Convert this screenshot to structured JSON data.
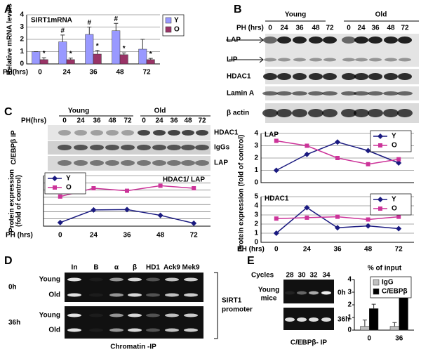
{
  "panel_labels": [
    "A",
    "B",
    "C",
    "D",
    "E"
  ],
  "chart_data": [
    {
      "type": "bar",
      "title": "SIRT1mRNA",
      "y_label": "Relative mRNA levels",
      "x_label": "PH(hrs)",
      "categories": [
        "0",
        "24",
        "36",
        "48",
        "72"
      ],
      "series": [
        {
          "name": "Y",
          "color": "#9999ff",
          "values": [
            1,
            1.8,
            2.4,
            2.7,
            1.2
          ],
          "errors": [
            0,
            0.55,
            0.6,
            0.6,
            0.8
          ]
        },
        {
          "name": "O",
          "color": "#993366",
          "values": [
            0.35,
            0.35,
            0.8,
            0.75,
            0.35
          ],
          "errors": [
            0.15,
            0.12,
            0.3,
            0.15,
            0.1
          ]
        }
      ],
      "annotations": [
        {
          "text": "#",
          "series": 0,
          "index": 1
        },
        {
          "text": "#",
          "series": 0,
          "index": 2
        },
        {
          "text": "#",
          "series": 0,
          "index": 3
        },
        {
          "text": "*",
          "series": 1,
          "index": 0
        },
        {
          "text": "*",
          "series": 1,
          "index": 1
        },
        {
          "text": "*",
          "series": 1,
          "index": 2
        },
        {
          "text": "*",
          "series": 1,
          "index": 3
        },
        {
          "text": "*",
          "series": 1,
          "index": 4
        }
      ],
      "ylim": [
        0,
        4
      ],
      "yticks": [
        0,
        1,
        2,
        3,
        4
      ],
      "grid": true,
      "legend": "right"
    },
    {
      "type": "line",
      "title": "LAP",
      "y_label": "Protein expression (fold of control)",
      "categories": [
        "0",
        "24",
        "36",
        "48",
        "72"
      ],
      "xtick_labels": false,
      "series": [
        {
          "name": "Y",
          "color": "#1a1a80",
          "marker": "diamond",
          "values": [
            1,
            2.3,
            3.3,
            2.6,
            1.6
          ]
        },
        {
          "name": "O",
          "color": "#cc3399",
          "marker": "square",
          "values": [
            3.4,
            3.0,
            2.0,
            1.5,
            1.9
          ]
        }
      ],
      "ylim": [
        0,
        4
      ],
      "yticks": [
        0,
        1,
        2,
        3,
        4
      ],
      "grid": true,
      "legend": "upper right"
    },
    {
      "type": "line",
      "title": "HDAC1",
      "x_label": "PH (hrs)",
      "categories": [
        "0",
        "24",
        "36",
        "48",
        "72"
      ],
      "series": [
        {
          "name": "Y",
          "color": "#1a1a80",
          "marker": "diamond",
          "values": [
            1,
            3.8,
            1.6,
            1.8,
            1.5
          ]
        },
        {
          "name": "O",
          "color": "#cc3399",
          "marker": "square",
          "values": [
            2.6,
            2.7,
            2.8,
            2.5,
            2.8
          ]
        }
      ],
      "ylim": [
        0,
        5
      ],
      "yticks": [
        0,
        1,
        2,
        3,
        4,
        5
      ],
      "grid": true,
      "legend": "upper right"
    },
    {
      "type": "line",
      "title": "HDAC1/ LAP",
      "y_label": [
        "Protein expression",
        "(fold of control)"
      ],
      "x_label": "PH (hrs)",
      "categories": [
        "0",
        "24",
        "36",
        "48",
        "72"
      ],
      "series": [
        {
          "name": "Y",
          "color": "#1a1a80",
          "marker": "diamond",
          "values": [
            1,
            4.5,
            4.6,
            3,
            0.8
          ]
        },
        {
          "name": "O",
          "color": "#cc3399",
          "marker": "square",
          "values": [
            8.2,
            10.5,
            9.8,
            11.2,
            10.5
          ]
        }
      ],
      "ylim": [
        0,
        14
      ],
      "yticks": [
        0,
        2,
        4,
        6,
        8,
        10,
        12,
        14
      ],
      "ytick_labels": false,
      "grid": true,
      "legend": "upper left"
    },
    {
      "type": "bar",
      "title": "% of input",
      "categories": [
        "0",
        "36"
      ],
      "series": [
        {
          "name": "IgG",
          "color": "#c0c0c0",
          "values": [
            0.3,
            0.3
          ],
          "errors": [
            0.5,
            0.3
          ]
        },
        {
          "name": "C/EBPβ",
          "color": "#000000",
          "values": [
            1.7,
            3.2
          ],
          "errors": [
            0.35,
            0.8
          ]
        }
      ],
      "ylim": [
        0,
        4
      ],
      "yticks": [
        0,
        1,
        2,
        3,
        4
      ],
      "grid": false,
      "legend": "upper right"
    }
  ],
  "blots": {
    "B": {
      "groups": [
        "Young",
        "Old"
      ],
      "ph_label": "PH (hrs)",
      "lanes": [
        "0",
        "24",
        "36",
        "48",
        "72",
        "0",
        "24",
        "36",
        "48",
        "72"
      ],
      "rows": [
        "LAP",
        "LIP",
        "HDAC1",
        "Lamin A",
        "β actin"
      ]
    },
    "C": {
      "groups": [
        "Young",
        "Old"
      ],
      "ph_label": "PH(hrs)",
      "lanes": [
        "0",
        "24",
        "36",
        "48",
        "72",
        "0",
        "24",
        "36",
        "48",
        "72"
      ],
      "ip_label": "C/EBPβ IP",
      "rows": [
        "HDAC1",
        "IgGs",
        "LAP"
      ]
    },
    "D": {
      "columns": [
        "In",
        "B",
        "α",
        "β",
        "HD1",
        "Ack9",
        "Mek9"
      ],
      "times": [
        {
          "label": "0h",
          "rows": [
            "Young",
            "Old"
          ]
        },
        {
          "label": "36h",
          "rows": [
            "Young",
            "Old"
          ]
        }
      ],
      "side_label": [
        "SIRT1",
        "promoter"
      ],
      "caption": "Chromatin -IP"
    },
    "E": {
      "cycles_label": "Cycles",
      "cycles": [
        "28",
        "30",
        "32",
        "34"
      ],
      "group_label": [
        "Young",
        "mice"
      ],
      "times": [
        "0h",
        "36h"
      ],
      "caption": "C/EBPβ- IP"
    }
  }
}
